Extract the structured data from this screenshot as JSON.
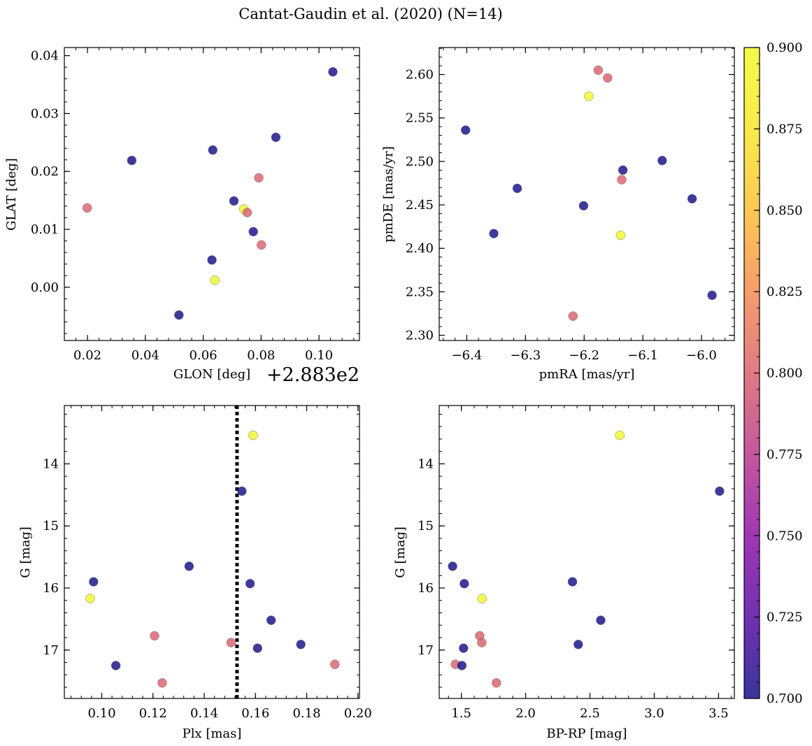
{
  "figure": {
    "title": "Cantat-Gaudin et al. (2020) (N=14)"
  },
  "colorbar": {
    "colormap": "plasma",
    "range": [
      0.7,
      0.9
    ],
    "tick_labels": [
      "0.700",
      "0.725",
      "0.750",
      "0.775",
      "0.800",
      "0.825",
      "0.850",
      "0.875",
      "0.900"
    ],
    "tick_values": [
      0.7,
      0.725,
      0.75,
      0.775,
      0.8,
      0.825,
      0.85,
      0.875,
      0.9
    ]
  },
  "chart_data": [
    {
      "type": "scatter",
      "id": "glon-glat",
      "title": "",
      "xlabel": "GLON [deg]",
      "ylabel": "GLAT [deg]",
      "offset_label": "+2.883e2",
      "xlim": [
        0.012,
        0.114
      ],
      "ylim": [
        -0.0092,
        0.0414
      ],
      "xticks": [
        0.02,
        0.04,
        0.06,
        0.08,
        0.1
      ],
      "xtick_labels": [
        "0.02",
        "0.04",
        "0.06",
        "0.08",
        "0.10"
      ],
      "yticks": [
        0.0,
        0.01,
        0.02,
        0.03,
        0.04
      ],
      "ytick_labels": [
        "0.00",
        "0.01",
        "0.02",
        "0.03",
        "0.04"
      ],
      "x": [
        0.1048,
        0.0851,
        0.0633,
        0.0353,
        0.0792,
        0.0199,
        0.0706,
        0.074,
        0.0752,
        0.0773,
        0.0801,
        0.063,
        0.064,
        0.0516
      ],
      "y": [
        0.0372,
        0.0259,
        0.0237,
        0.0219,
        0.0189,
        0.0137,
        0.0149,
        0.0135,
        0.0129,
        0.0096,
        0.0073,
        0.0047,
        0.0012,
        -0.0048
      ],
      "c": [
        0.7,
        0.7,
        0.7,
        0.7,
        0.8,
        0.8,
        0.7,
        0.9,
        0.8,
        0.7,
        0.8,
        0.7,
        0.9,
        0.7
      ]
    },
    {
      "type": "scatter",
      "id": "pmra-pmde",
      "title": "",
      "xlabel": "pmRA [mas/yr]",
      "ylabel": "pmDE [mas/yr]",
      "xlim": [
        -6.447,
        -5.944
      ],
      "ylim": [
        2.294,
        2.631
      ],
      "xticks": [
        -6.4,
        -6.3,
        -6.2,
        -6.1,
        -6.0
      ],
      "xtick_labels": [
        "−6.4",
        "−6.3",
        "−6.2",
        "−6.1",
        "−6.0"
      ],
      "yticks": [
        2.3,
        2.35,
        2.4,
        2.45,
        2.5,
        2.55,
        2.6
      ],
      "ytick_labels": [
        "2.30",
        "2.35",
        "2.40",
        "2.45",
        "2.50",
        "2.55",
        "2.60"
      ],
      "x": [
        -6.176,
        -6.16,
        -6.192,
        -6.402,
        -6.067,
        -6.134,
        -6.136,
        -6.314,
        -6.201,
        -6.016,
        -6.354,
        -6.138,
        -5.982,
        -6.219
      ],
      "y": [
        2.605,
        2.596,
        2.575,
        2.536,
        2.501,
        2.49,
        2.479,
        2.469,
        2.449,
        2.457,
        2.417,
        2.415,
        2.346,
        2.322
      ],
      "c": [
        0.8,
        0.8,
        0.9,
        0.7,
        0.7,
        0.7,
        0.8,
        0.7,
        0.7,
        0.7,
        0.7,
        0.9,
        0.7,
        0.8
      ]
    },
    {
      "type": "scatter",
      "id": "plx-g",
      "title": "",
      "xlabel": "Plx [mas]",
      "ylabel": "G [mag]",
      "xlim": [
        0.0854,
        0.2006
      ],
      "ylim": [
        17.78,
        13.06
      ],
      "y_inverted": true,
      "vline": 0.1528,
      "xticks": [
        0.1,
        0.12,
        0.14,
        0.16,
        0.18,
        0.2
      ],
      "xtick_labels": [
        "0.10",
        "0.12",
        "0.14",
        "0.16",
        "0.18",
        "0.20"
      ],
      "yticks": [
        14,
        15,
        16,
        17
      ],
      "ytick_labels": [
        "14",
        "15",
        "16",
        "17"
      ],
      "x": [
        0.1591,
        0.1547,
        0.1341,
        0.0968,
        0.1579,
        0.0955,
        0.1661,
        0.1206,
        0.1777,
        0.1505,
        0.1608,
        0.191,
        0.1055,
        0.1236
      ],
      "y": [
        13.54,
        14.44,
        15.65,
        15.9,
        15.93,
        16.17,
        16.52,
        16.77,
        16.91,
        16.88,
        16.97,
        17.23,
        17.25,
        17.53
      ],
      "c": [
        0.9,
        0.7,
        0.7,
        0.7,
        0.7,
        0.9,
        0.7,
        0.8,
        0.7,
        0.8,
        0.7,
        0.8,
        0.7,
        0.8
      ]
    },
    {
      "type": "scatter",
      "id": "bprp-g",
      "title": "",
      "xlabel": "BP-RP [mag]",
      "ylabel": "G [mag]",
      "xlim": [
        1.328,
        3.623
      ],
      "ylim": [
        17.78,
        13.06
      ],
      "y_inverted": true,
      "xticks": [
        1.5,
        2.0,
        2.5,
        3.0,
        3.5
      ],
      "xtick_labels": [
        "1.5",
        "2.0",
        "2.5",
        "3.0",
        "3.5"
      ],
      "yticks": [
        14,
        15,
        16,
        17
      ],
      "ytick_labels": [
        "14",
        "15",
        "16",
        "17"
      ],
      "x": [
        2.732,
        3.508,
        1.432,
        2.364,
        1.523,
        1.661,
        2.584,
        1.643,
        2.409,
        1.659,
        1.517,
        1.454,
        1.504,
        1.773
      ],
      "y": [
        13.54,
        14.44,
        15.65,
        15.9,
        15.93,
        16.17,
        16.52,
        16.77,
        16.91,
        16.88,
        16.97,
        17.23,
        17.25,
        17.53
      ],
      "c": [
        0.9,
        0.7,
        0.7,
        0.7,
        0.7,
        0.9,
        0.7,
        0.8,
        0.7,
        0.8,
        0.7,
        0.8,
        0.7,
        0.8
      ]
    }
  ]
}
